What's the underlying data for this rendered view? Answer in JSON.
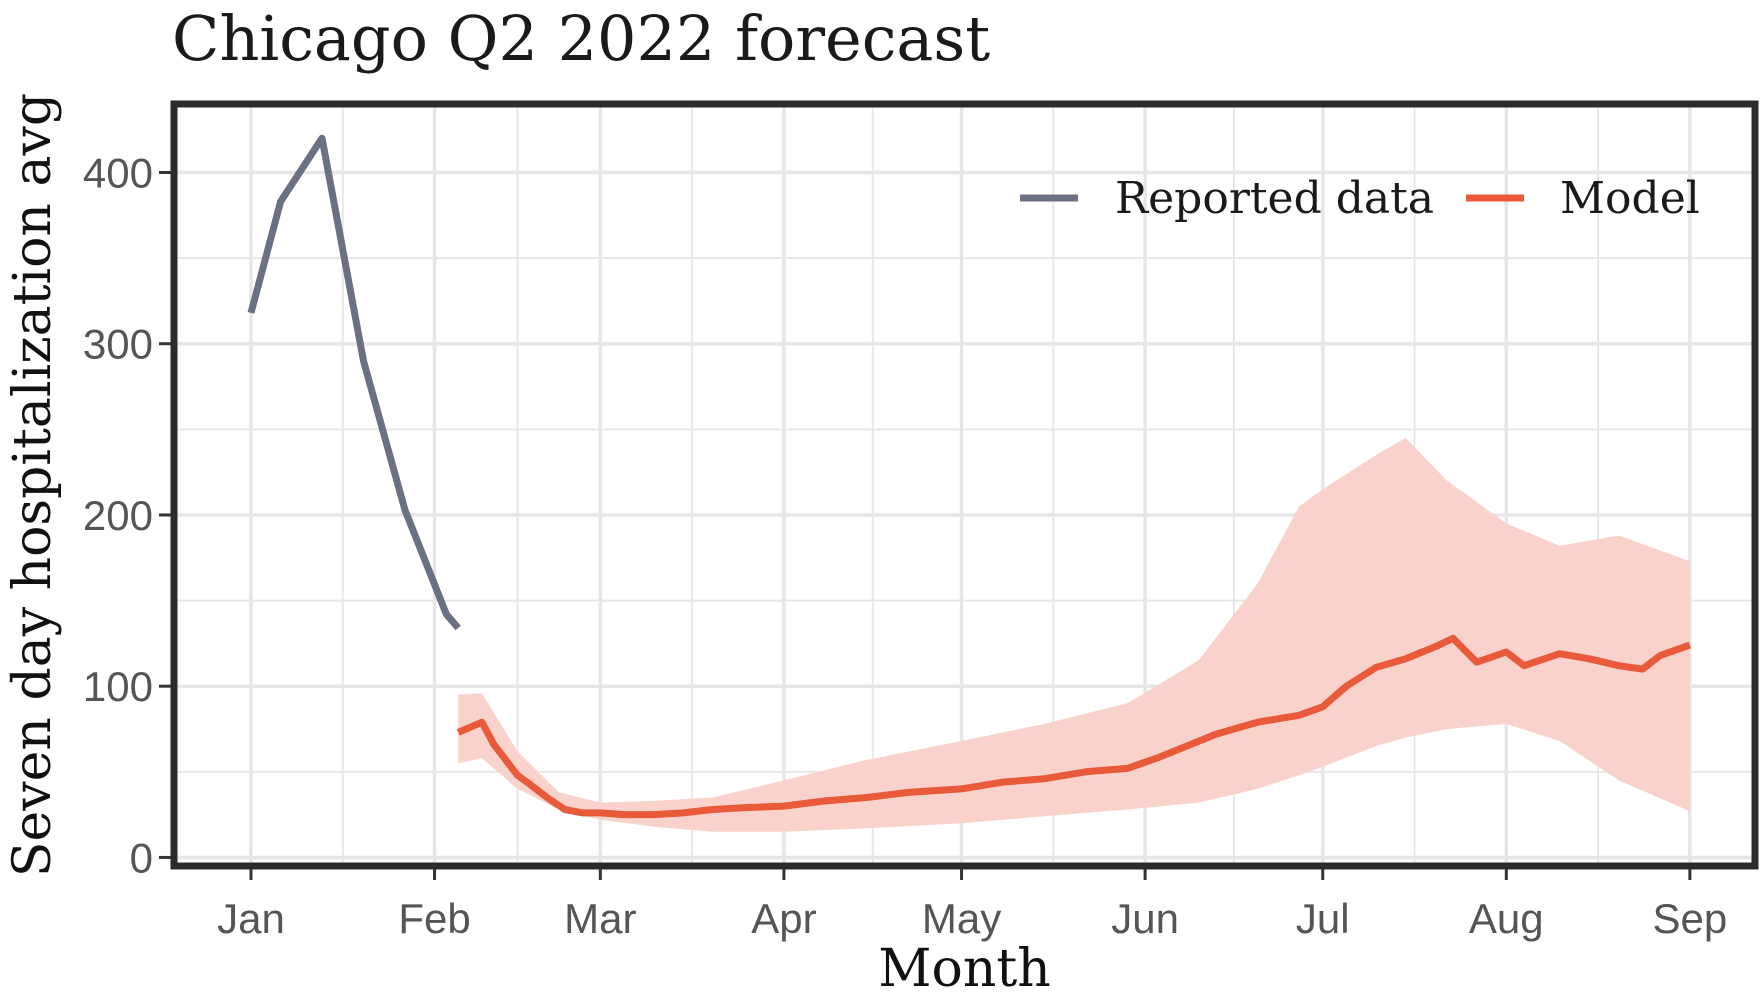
{
  "chart_data": {
    "type": "line",
    "title": "Chicago Q2 2022 forecast",
    "xlabel": "Month",
    "ylabel": "Seven day hospitalization avg",
    "x_ticks": [
      {
        "label": "Jan",
        "date": "2022-01-01"
      },
      {
        "label": "Feb",
        "date": "2022-02-01"
      },
      {
        "label": "Mar",
        "date": "2022-03-01"
      },
      {
        "label": "Apr",
        "date": "2022-04-01"
      },
      {
        "label": "May",
        "date": "2022-05-01"
      },
      {
        "label": "Jun",
        "date": "2022-06-01"
      },
      {
        "label": "Jul",
        "date": "2022-07-01"
      },
      {
        "label": "Aug",
        "date": "2022-08-01"
      },
      {
        "label": "Sep",
        "date": "2022-09-01"
      }
    ],
    "xlim": [
      "2021-12-19",
      "2022-09-12"
    ],
    "y_ticks": [
      0,
      100,
      200,
      300,
      400
    ],
    "ylim": [
      -5,
      440
    ],
    "grid": true,
    "legend_position": "top-right",
    "colors": {
      "reported": "#6b7083",
      "model": "#e85a3a",
      "band": "#f9d3cb",
      "grid": "#e6e6e6",
      "frame": "#2b2b2b"
    },
    "series": [
      {
        "name": "Reported data",
        "kind": "line",
        "x": [
          "2022-01-01",
          "2022-01-06",
          "2022-01-13",
          "2022-01-20",
          "2022-01-27",
          "2022-02-03",
          "2022-02-05"
        ],
        "y": [
          318,
          383,
          420,
          290,
          203,
          142,
          134
        ]
      },
      {
        "name": "Model",
        "kind": "line",
        "x": [
          "2022-02-05",
          "2022-02-07",
          "2022-02-09",
          "2022-02-11",
          "2022-02-13",
          "2022-02-15",
          "2022-02-17",
          "2022-02-20",
          "2022-02-23",
          "2022-02-26",
          "2022-03-01",
          "2022-03-05",
          "2022-03-10",
          "2022-03-15",
          "2022-03-20",
          "2022-03-25",
          "2022-04-01",
          "2022-04-08",
          "2022-04-15",
          "2022-04-22",
          "2022-05-01",
          "2022-05-08",
          "2022-05-15",
          "2022-05-22",
          "2022-05-29",
          "2022-06-03",
          "2022-06-08",
          "2022-06-13",
          "2022-06-20",
          "2022-06-27",
          "2022-07-01",
          "2022-07-05",
          "2022-07-10",
          "2022-07-15",
          "2022-07-20",
          "2022-07-23",
          "2022-07-27",
          "2022-08-01",
          "2022-08-04",
          "2022-08-10",
          "2022-08-15",
          "2022-08-20",
          "2022-08-24",
          "2022-08-27",
          "2022-09-01"
        ],
        "y": [
          73,
          76,
          79,
          66,
          57,
          48,
          43,
          35,
          28,
          26,
          26,
          25,
          25,
          26,
          28,
          29,
          30,
          33,
          35,
          38,
          40,
          44,
          46,
          50,
          52,
          58,
          65,
          72,
          79,
          83,
          88,
          100,
          111,
          116,
          123,
          128,
          114,
          120,
          112,
          119,
          116,
          112,
          110,
          118,
          124
        ]
      },
      {
        "name": "",
        "kind": "band",
        "x": [
          "2022-02-05",
          "2022-02-09",
          "2022-02-15",
          "2022-02-22",
          "2022-03-01",
          "2022-03-10",
          "2022-03-20",
          "2022-04-01",
          "2022-04-15",
          "2022-05-01",
          "2022-05-15",
          "2022-05-29",
          "2022-06-10",
          "2022-06-20",
          "2022-06-27",
          "2022-07-01",
          "2022-07-10",
          "2022-07-15",
          "2022-07-22",
          "2022-08-01",
          "2022-08-10",
          "2022-08-20",
          "2022-09-01"
        ],
        "lower": [
          55,
          58,
          40,
          28,
          22,
          18,
          15,
          15,
          17,
          20,
          24,
          28,
          32,
          40,
          48,
          53,
          65,
          70,
          75,
          78,
          68,
          45,
          27
        ],
        "upper": [
          95,
          96,
          62,
          38,
          32,
          33,
          35,
          45,
          57,
          68,
          78,
          90,
          115,
          160,
          205,
          215,
          235,
          245,
          220,
          195,
          182,
          188,
          173
        ]
      }
    ]
  }
}
